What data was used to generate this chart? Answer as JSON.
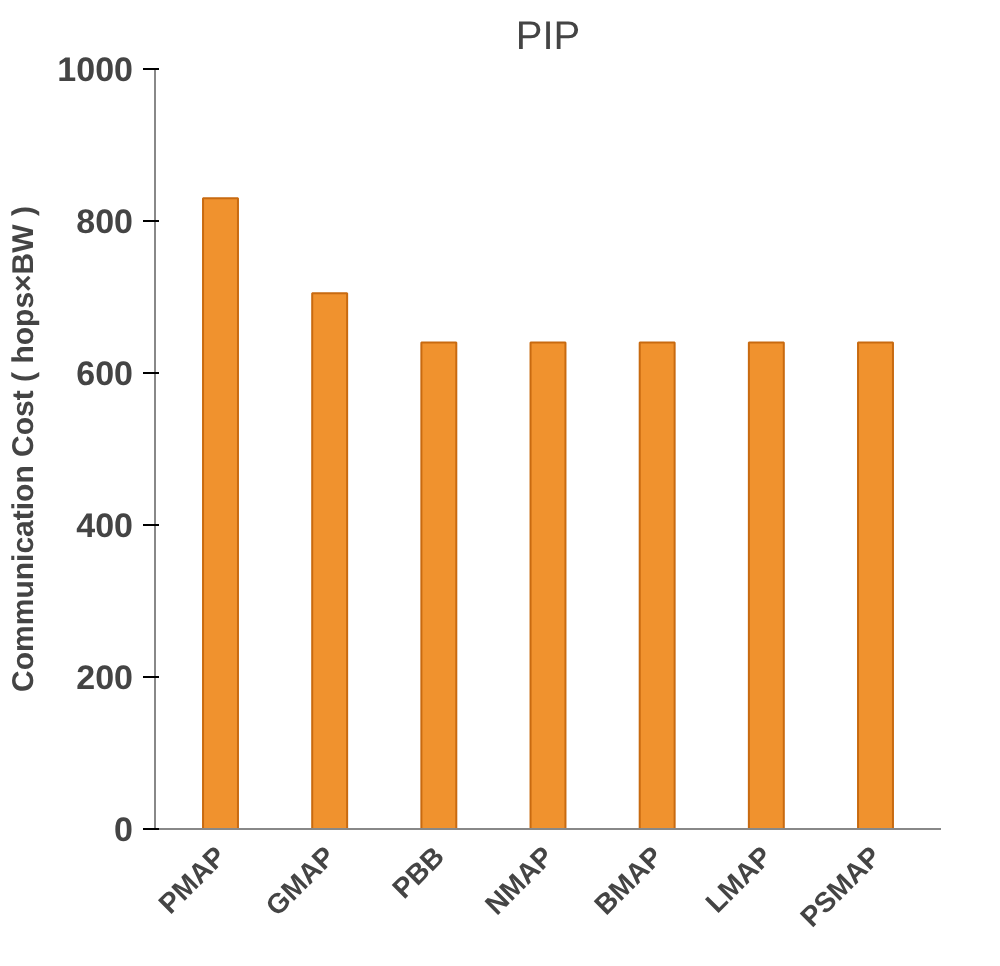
{
  "chart_data": {
    "type": "bar",
    "title": "PIP",
    "ylabel": "Communication Cost ( hops×BW )",
    "categories": [
      "PMAP",
      "GMAP",
      "PBB",
      "NMAP",
      "BMAP",
      "LMAP",
      "PSMAP"
    ],
    "values": [
      830,
      705,
      640,
      640,
      640,
      640,
      640
    ],
    "color": "#f0922e",
    "ylim": [
      0,
      1000
    ],
    "yticks": [
      0,
      200,
      400,
      600,
      800,
      1000
    ],
    "grid": false
  }
}
